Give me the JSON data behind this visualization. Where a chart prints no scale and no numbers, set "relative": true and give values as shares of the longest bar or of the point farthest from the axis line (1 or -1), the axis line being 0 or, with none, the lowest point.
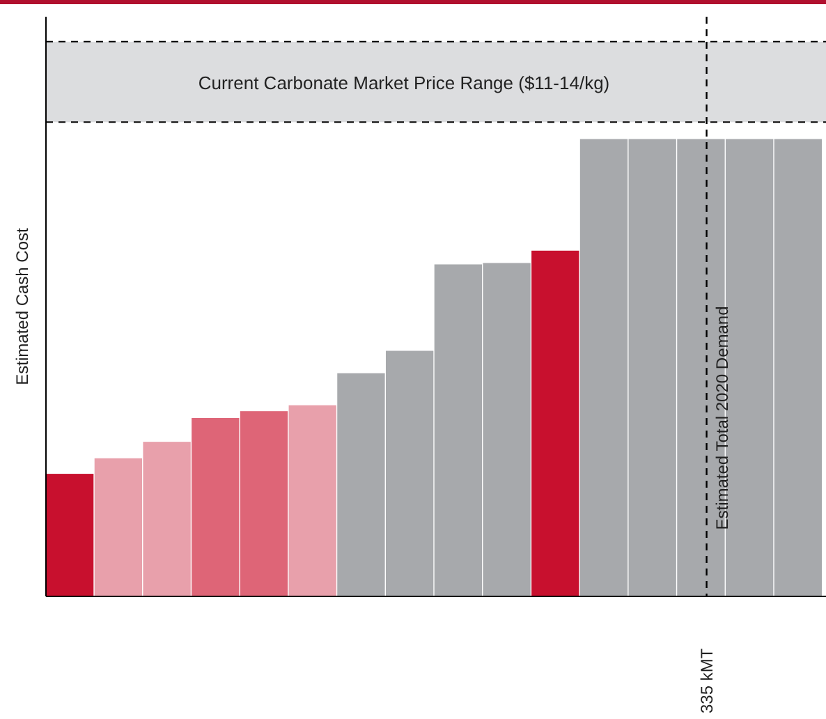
{
  "chart_data": {
    "type": "bar",
    "relative": true,
    "ylabel": "Estimated Cash Cost",
    "categories": [
      null,
      null,
      null,
      null,
      null,
      null,
      null,
      null,
      null,
      null,
      null,
      null,
      null,
      null,
      null,
      null
    ],
    "values": [
      0.268,
      0.302,
      0.338,
      0.39,
      0.405,
      0.418,
      0.488,
      0.537,
      0.726,
      0.729,
      0.756,
      1,
      1,
      1,
      1,
      1
    ],
    "colors": [
      "#c8102e",
      "#e8a0ab",
      "#e8a0ab",
      "#de6577",
      "#de6577",
      "#e8a0ab",
      "#a7a9ac",
      "#a7a9ac",
      "#a7a9ac",
      "#a7a9ac",
      "#c8102e",
      "#a7a9ac",
      "#a7a9ac",
      "#a7a9ac",
      "#a7a9ac",
      "#a7a9ac"
    ],
    "annotations": [
      "Estimated Total 2020 Demand",
      "335 kMT"
    ],
    "bands": [
      {
        "axis": "y",
        "from": 1.037,
        "to": 1.213,
        "label": "Current Carbonate Market Price Range ($11-14/kg)",
        "color": "#dcdddf"
      }
    ]
  }
}
